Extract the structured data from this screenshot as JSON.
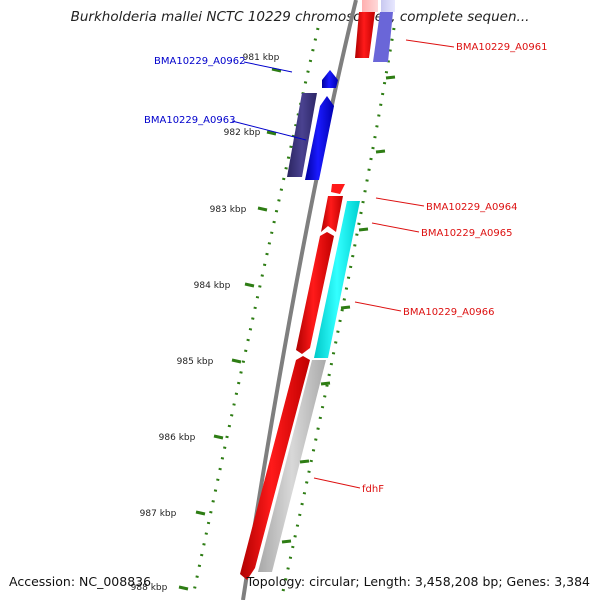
{
  "title": "Burkholderia mallei NCTC 10229 chromosome I, complete sequen...",
  "footer": {
    "accession": "Accession: NC_008836",
    "topology": "Topology: circular; Length: 3,458,208 bp; Genes: 3,384"
  },
  "colors": {
    "backbone": "#7f7f7f",
    "tick": "#2e7d14",
    "label_red": "#dd1111",
    "label_blue": "#0000cc",
    "gene_red": "#ff0000",
    "gene_blue": "#0000ff",
    "gene_navy": "#3d3580",
    "gene_cyan": "#00e5e5",
    "gene_grey": "#b8b8b8"
  },
  "ruler": [
    "981 kbp",
    "982 kbp",
    "983 kbp",
    "984 kbp",
    "985 kbp",
    "986 kbp",
    "987 kbp",
    "988 kbp"
  ],
  "genes": [
    {
      "label": "BMA10229_A0961",
      "label_color": "#dd1111"
    },
    {
      "label": "BMA10229_A0962",
      "label_color": "#0000cc"
    },
    {
      "label": "BMA10229_A0963",
      "label_color": "#0000cc"
    },
    {
      "label": "BMA10229_A0964",
      "label_color": "#dd1111"
    },
    {
      "label": "BMA10229_A0965",
      "label_color": "#dd1111"
    },
    {
      "label": "BMA10229_A0966",
      "label_color": "#dd1111"
    },
    {
      "label": "fdhF",
      "label_color": "#dd1111"
    }
  ]
}
